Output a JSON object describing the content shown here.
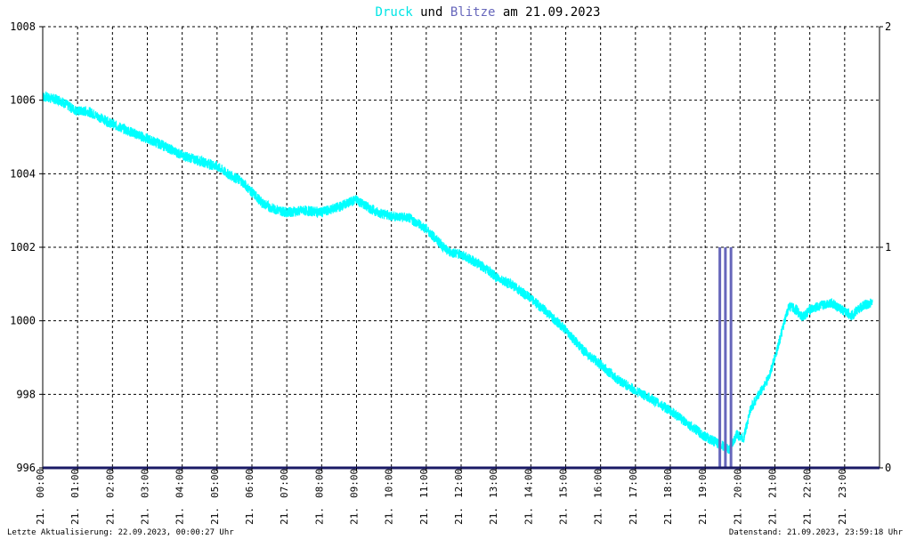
{
  "colors": {
    "pressure": "#00ffff",
    "lightning": "#6666bb",
    "axis": "#000000",
    "grid": "#000000",
    "baseline": "#1a1a66",
    "text": "#000000"
  },
  "title": {
    "part1": "Druck",
    "part2": " und ",
    "part3": "Blitze",
    "part4": " am 21.09.2023"
  },
  "footer": {
    "left": "Letzte Aktualisierung: 22.09.2023, 00:00:27 Uhr",
    "right": "Datenstand: 21.09.2023, 23:59:18 Uhr"
  },
  "chart_data": {
    "type": "line",
    "x_unit": "hours of day",
    "xlim": [
      0,
      24
    ],
    "ylim_left": [
      996,
      1008
    ],
    "ylim_right": [
      0,
      2
    ],
    "left_ticks": [
      996,
      998,
      1000,
      1002,
      1004,
      1006,
      1008
    ],
    "right_ticks": [
      0,
      1,
      2
    ],
    "x_ticks": [
      {
        "x": 0,
        "label": "21. 00:00"
      },
      {
        "x": 1,
        "label": "21. 01:00"
      },
      {
        "x": 2,
        "label": "21. 02:00"
      },
      {
        "x": 3,
        "label": "21. 03:00"
      },
      {
        "x": 4,
        "label": "21. 04:00"
      },
      {
        "x": 5,
        "label": "21. 05:00"
      },
      {
        "x": 6,
        "label": "21. 06:00"
      },
      {
        "x": 7,
        "label": "21. 07:00"
      },
      {
        "x": 8,
        "label": "21. 08:00"
      },
      {
        "x": 9,
        "label": "21. 09:00"
      },
      {
        "x": 10,
        "label": "21. 10:00"
      },
      {
        "x": 11,
        "label": "21. 11:00"
      },
      {
        "x": 12,
        "label": "21. 12:00"
      },
      {
        "x": 13,
        "label": "21. 13:00"
      },
      {
        "x": 14,
        "label": "21. 14:00"
      },
      {
        "x": 15,
        "label": "21. 15:00"
      },
      {
        "x": 16,
        "label": "21. 16:00"
      },
      {
        "x": 17,
        "label": "21. 17:00"
      },
      {
        "x": 18,
        "label": "21. 18:00"
      },
      {
        "x": 19,
        "label": "21. 19:00"
      },
      {
        "x": 20,
        "label": "21. 20:00"
      },
      {
        "x": 21,
        "label": "21. 21:00"
      },
      {
        "x": 22,
        "label": "21. 22:00"
      },
      {
        "x": 23,
        "label": "21. 23:00"
      }
    ],
    "grid": true,
    "series": [
      {
        "name": "Druck",
        "axis": "left",
        "points": [
          [
            0.0,
            1006.1
          ],
          [
            0.5,
            1006.0
          ],
          [
            0.8,
            1005.8
          ],
          [
            1.0,
            1005.7
          ],
          [
            1.3,
            1005.7
          ],
          [
            1.6,
            1005.55
          ],
          [
            2.0,
            1005.35
          ],
          [
            2.5,
            1005.15
          ],
          [
            3.0,
            1004.95
          ],
          [
            3.5,
            1004.75
          ],
          [
            4.0,
            1004.5
          ],
          [
            4.5,
            1004.35
          ],
          [
            5.0,
            1004.2
          ],
          [
            5.3,
            1004.0
          ],
          [
            5.7,
            1003.8
          ],
          [
            6.0,
            1003.5
          ],
          [
            6.3,
            1003.2
          ],
          [
            6.6,
            1003.05
          ],
          [
            7.0,
            1002.95
          ],
          [
            7.5,
            1003.0
          ],
          [
            8.0,
            1002.95
          ],
          [
            8.5,
            1003.1
          ],
          [
            9.0,
            1003.3
          ],
          [
            9.3,
            1003.1
          ],
          [
            9.6,
            1002.95
          ],
          [
            10.0,
            1002.85
          ],
          [
            10.5,
            1002.8
          ],
          [
            11.0,
            1002.5
          ],
          [
            11.3,
            1002.2
          ],
          [
            11.6,
            1001.9
          ],
          [
            12.0,
            1001.8
          ],
          [
            12.5,
            1001.55
          ],
          [
            13.0,
            1001.2
          ],
          [
            13.5,
            1000.95
          ],
          [
            14.0,
            1000.6
          ],
          [
            14.5,
            1000.2
          ],
          [
            15.0,
            999.75
          ],
          [
            15.5,
            999.2
          ],
          [
            16.0,
            998.8
          ],
          [
            16.5,
            998.4
          ],
          [
            17.0,
            998.1
          ],
          [
            17.5,
            997.85
          ],
          [
            18.0,
            997.55
          ],
          [
            18.5,
            997.2
          ],
          [
            19.0,
            996.85
          ],
          [
            19.4,
            996.65
          ],
          [
            19.7,
            996.5
          ],
          [
            19.9,
            996.9
          ],
          [
            20.1,
            996.8
          ],
          [
            20.3,
            997.6
          ],
          [
            20.6,
            998.1
          ],
          [
            20.8,
            998.4
          ],
          [
            21.0,
            999.0
          ],
          [
            21.2,
            999.7
          ],
          [
            21.4,
            1000.4
          ],
          [
            21.6,
            1000.3
          ],
          [
            21.8,
            1000.1
          ],
          [
            22.0,
            1000.3
          ],
          [
            22.3,
            1000.4
          ],
          [
            22.6,
            1000.5
          ],
          [
            22.9,
            1000.3
          ],
          [
            23.2,
            1000.15
          ],
          [
            23.5,
            1000.4
          ],
          [
            23.8,
            1000.5
          ]
        ]
      },
      {
        "name": "Blitze",
        "axis": "right",
        "type": "bar",
        "points": [
          [
            19.42,
            1
          ],
          [
            19.58,
            1
          ],
          [
            19.74,
            1
          ]
        ]
      }
    ]
  }
}
